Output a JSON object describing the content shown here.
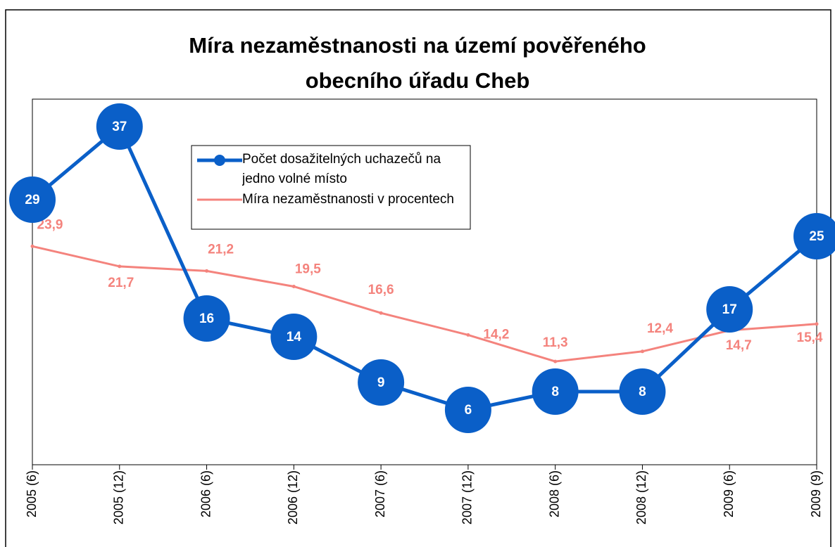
{
  "chart_data": {
    "type": "line",
    "title": "Míra nezaměstnanosti na území pověřeného obecního úřadu Cheb",
    "categories": [
      "2005 (6)",
      "2005 (12)",
      "2006 (6)",
      "2006 (12)",
      "2007 (6)",
      "2007 (12)",
      "2008 (6)",
      "2008 (12)",
      "2009 (6)",
      "2009 (9)"
    ],
    "series": [
      {
        "name": "Počet dosažitelných uchazečů na jedno volné místo",
        "color": "#0a5fc8",
        "values": [
          29,
          37,
          16,
          14,
          9,
          6,
          8,
          8,
          17,
          25
        ]
      },
      {
        "name": "Míra nezaměstnanosti v procentech",
        "color": "#f4837d",
        "values": [
          23.9,
          21.7,
          21.2,
          19.5,
          16.6,
          14.2,
          11.3,
          12.4,
          14.7,
          15.4
        ],
        "value_labels": [
          "23,9",
          "21,7",
          "21,2",
          "19,5",
          "16,6",
          "14,2",
          "11,3",
          "12,4",
          "14,7",
          "15,4"
        ]
      }
    ],
    "ylim": [
      0,
      40
    ]
  }
}
